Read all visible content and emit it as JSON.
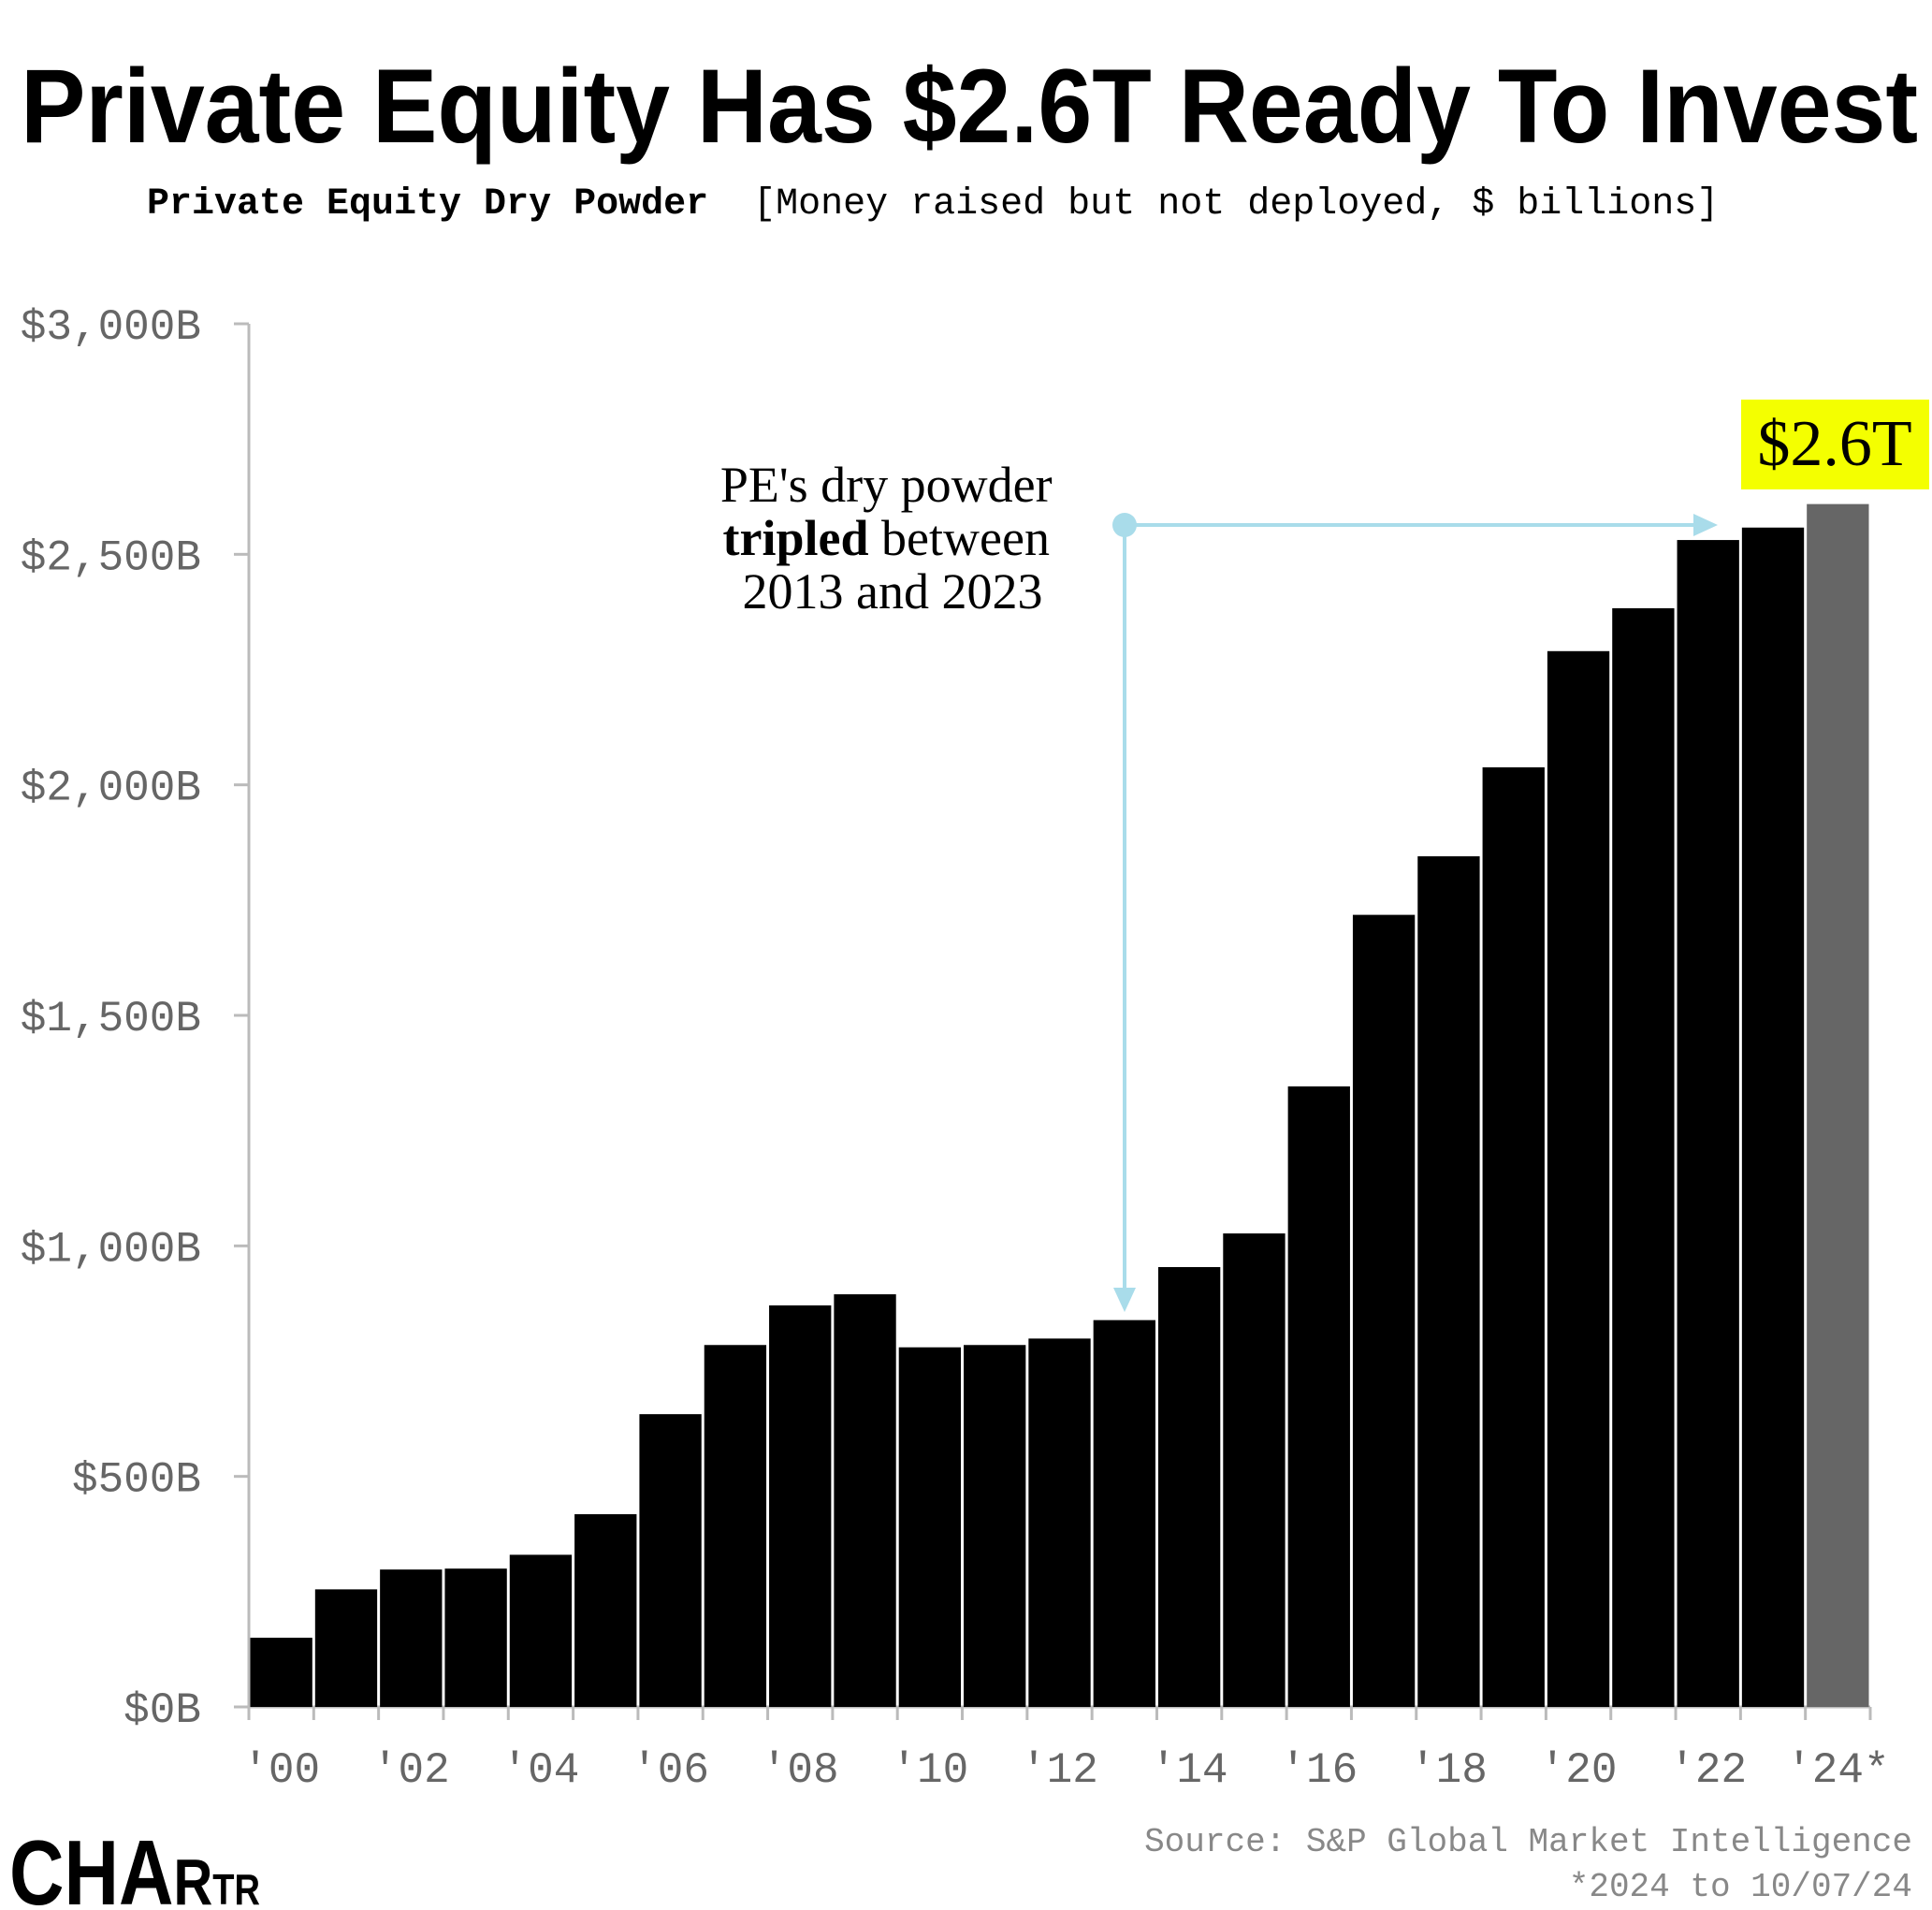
{
  "title": "Private Equity Has $2.6T Ready To Invest",
  "subtitle_bold": "Private Equity Dry Powder",
  "subtitle_rest": "[Money raised but not deployed, $ billions]",
  "callout": {
    "label": "$2.6T",
    "highlight_color": "#f4ff00"
  },
  "annotation": {
    "line1": "PE's dry powder",
    "line2_bold": "tripled",
    "line2_rest": " between",
    "line3": "2013 and 2023",
    "arrow_color": "#a9dcea"
  },
  "source": "Source: S&P Global Market Intelligence",
  "footnote": "*2024 to 10/07/24",
  "logo": "CHARTR",
  "chart_data": {
    "type": "bar",
    "title": "Private Equity Dry Powder",
    "xlabel": "",
    "ylabel": "$ billions",
    "ylim": [
      0,
      3000
    ],
    "yticks": [
      0,
      500,
      1000,
      1500,
      2000,
      2500,
      3000
    ],
    "ytick_labels": [
      "$0B",
      "$500B",
      "$1,000B",
      "$1,500B",
      "$2,000B",
      "$2,500B",
      "$3,000B"
    ],
    "categories": [
      "2000",
      "2001",
      "2002",
      "2003",
      "2004",
      "2005",
      "2006",
      "2007",
      "2008",
      "2009",
      "2010",
      "2011",
      "2012",
      "2013",
      "2014",
      "2015",
      "2016",
      "2017",
      "2018",
      "2019",
      "2020",
      "2021",
      "2022",
      "2023",
      "2024*"
    ],
    "xtick_labels": [
      "'00",
      "",
      "'02",
      "",
      "'04",
      "",
      "'06",
      "",
      "'08",
      "",
      "'10",
      "",
      "'12",
      "",
      "'14",
      "",
      "'16",
      "",
      "'18",
      "",
      "'20",
      "",
      "'22",
      "",
      "'24*"
    ],
    "values": [
      150,
      255,
      298,
      300,
      330,
      418,
      635,
      785,
      871,
      895,
      780,
      785,
      799,
      839,
      954,
      1027,
      1346,
      1718,
      1845,
      2038,
      2290,
      2383,
      2531,
      2558,
      2609
    ],
    "bar_color": "#000000",
    "partial_bar_color": "#666666",
    "grid": false
  }
}
